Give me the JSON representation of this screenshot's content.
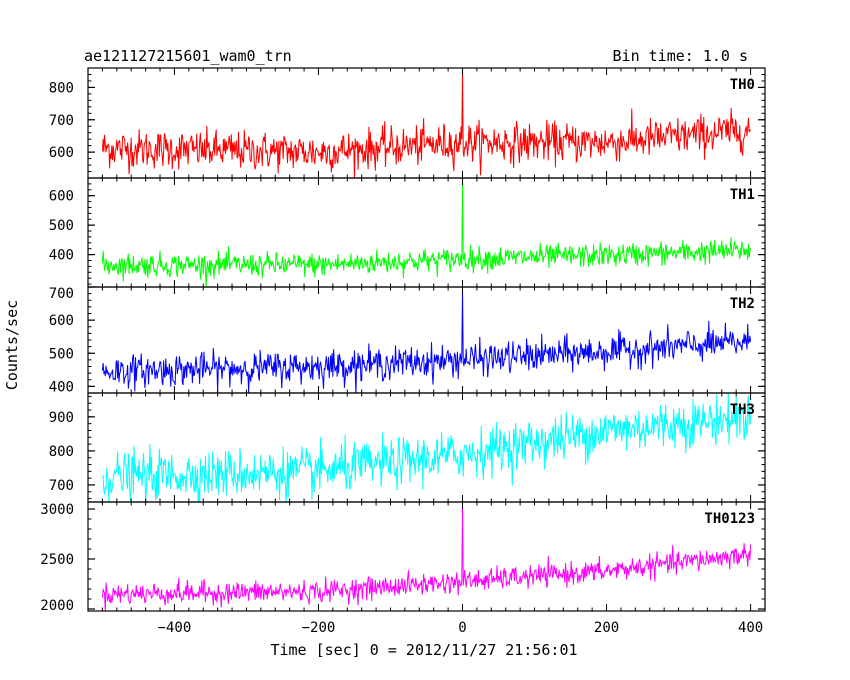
{
  "header": {
    "left": "ae121127215601_wam0_trn",
    "right": "Bin time: 1.0 s"
  },
  "chart_data": {
    "type": "line",
    "title": "ae121127215601_wam0_trn",
    "subtitle": "Bin time: 1.0 s",
    "xlabel": "Time [sec] 0 = 2012/11/27 21:56:01",
    "ylabel": "Counts/sec",
    "xlim": [
      -520,
      420
    ],
    "x_ticks": [
      -400,
      -200,
      0,
      200,
      400
    ],
    "x_tick_labels": [
      "−400",
      "−200",
      "0",
      "200",
      "400"
    ],
    "data_range": [
      -500,
      400
    ],
    "bin_time_s": 1.0,
    "grid": false,
    "panels": [
      {
        "name": "TH0",
        "color": "#ff0000",
        "ylim": [
          520,
          860
        ],
        "y_ticks": [
          600,
          700,
          800
        ],
        "baseline": [
          [
            -500,
            612
          ],
          [
            -200,
            600
          ],
          [
            0,
            630
          ],
          [
            200,
            630
          ],
          [
            400,
            668
          ]
        ],
        "noise_sigma": 30,
        "spike": {
          "x": 0,
          "y": 860
        }
      },
      {
        "name": "TH1",
        "color": "#00ff00",
        "ylim": [
          290,
          660
        ],
        "y_ticks": [
          400,
          500,
          600
        ],
        "baseline": [
          [
            -500,
            365
          ],
          [
            -200,
            365
          ],
          [
            0,
            385
          ],
          [
            200,
            398
          ],
          [
            400,
            415
          ]
        ],
        "noise_sigma": 20,
        "spike": {
          "x": 0,
          "y": 660
        }
      },
      {
        "name": "TH2",
        "color": "#0000ff",
        "ylim": [
          380,
          700
        ],
        "y_ticks": [
          400,
          500,
          600,
          700
        ],
        "baseline": [
          [
            -500,
            445
          ],
          [
            -200,
            460
          ],
          [
            0,
            480
          ],
          [
            200,
            505
          ],
          [
            400,
            535
          ]
        ],
        "noise_sigma": 24,
        "spike": {
          "x": 0,
          "y": 700
        }
      },
      {
        "name": "TH3",
        "color": "#00ffff",
        "ylim": [
          650,
          970
        ],
        "y_ticks": [
          700,
          800,
          900
        ],
        "baseline": [
          [
            -500,
            725
          ],
          [
            -200,
            740
          ],
          [
            0,
            790
          ],
          [
            200,
            860
          ],
          [
            400,
            900
          ]
        ],
        "noise_sigma": 35,
        "spike": null
      },
      {
        "name": "TH0123",
        "color": "#ff00ff",
        "ylim": [
          1980,
          3070
        ],
        "y_ticks": [
          2000,
          2500,
          3000
        ],
        "baseline": [
          [
            -500,
            2150
          ],
          [
            -200,
            2175
          ],
          [
            0,
            2275
          ],
          [
            200,
            2380
          ],
          [
            400,
            2550
          ]
        ],
        "noise_sigma": 55,
        "spike": {
          "x": 0,
          "y": 3070
        }
      }
    ]
  }
}
